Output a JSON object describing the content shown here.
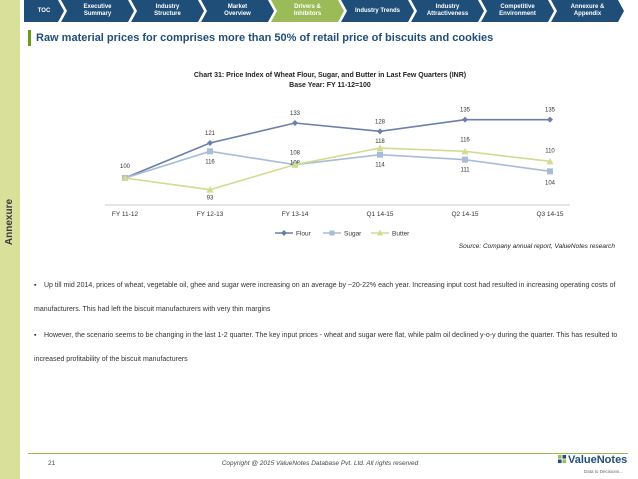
{
  "sidebar": {
    "label": "Annexure"
  },
  "nav": {
    "tabs": [
      {
        "line1": "TOC",
        "line2": ""
      },
      {
        "line1": "Executive",
        "line2": "Summary"
      },
      {
        "line1": "Industry",
        "line2": "Structure"
      },
      {
        "line1": "Market",
        "line2": "Overview"
      },
      {
        "line1": "Drivers &",
        "line2": "Inhibitors"
      },
      {
        "line1": "Industry Trends",
        "line2": ""
      },
      {
        "line1": "Industry",
        "line2": "Attractiveness"
      },
      {
        "line1": "Competitive",
        "line2": "Environment"
      },
      {
        "line1": "Annexure &",
        "line2": "Appendix"
      }
    ]
  },
  "page": {
    "title": "Raw material prices for comprises more than 50% of retail price of biscuits and cookies"
  },
  "chart_data": {
    "type": "line",
    "title": "Chart 31: Price Index of Wheat Flour, Sugar, and Butter in Last Few Quarters (INR)",
    "subtitle": "Base Year: FY 11-12=100",
    "categories": [
      "FY 11-12",
      "FY 12-13",
      "FY 13-14",
      "Q1 14-15",
      "Q2 14-15",
      "Q3 14-15"
    ],
    "series": [
      {
        "name": "Flour",
        "values": [
          100,
          121,
          133,
          128,
          135,
          135
        ],
        "color": "#6b7fa8",
        "marker": "diamond"
      },
      {
        "name": "Sugar",
        "values": [
          100,
          116,
          108,
          114,
          111,
          104
        ],
        "color": "#a9bcd6",
        "marker": "square"
      },
      {
        "name": "Butter",
        "values": [
          100,
          93,
          108,
          118,
          116,
          110
        ],
        "color": "#d2dc8e",
        "marker": "triangle"
      }
    ],
    "ylim": [
      85,
      142
    ],
    "legend": "bottom"
  },
  "source": "Source: Company annual report, ValueNotes research",
  "bullets": [
    {
      "marker": "▪",
      "text": "Up till mid 2014, prices of wheat, vegetable oil, ghee and sugar were increasing on an average by ~20-22% each year. Increasing input cost had resulted in increasing operating costs of manufacturers. This had left the biscuit manufacturers with very thin margins"
    },
    {
      "marker": "▪",
      "text": "However, the scenario seems to be changing in the last 1-2 quarter. The key input prices - wheat and sugar were flat, while palm oil declined y-o-y during the quarter. This has resulted to increased profitability of the biscuit manufacturers"
    }
  ],
  "footer": {
    "page": "21",
    "copyright": "Copyright @ 2015 ValueNotes Database Pvt. Ltd. All rights reserved",
    "logo": "ValueNotes",
    "tagline": "Data to Decisions..."
  }
}
